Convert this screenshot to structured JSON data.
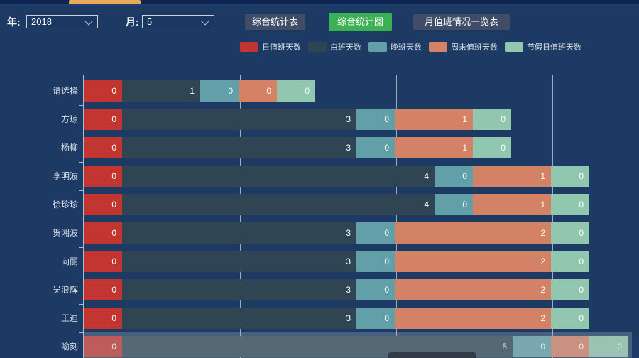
{
  "colors": {
    "background": "#1c3a64",
    "active_tab_accent": "#e9a85e",
    "active_button_green": "#3cb054",
    "default_button": "#3f4e66",
    "gridline": "#c9d2da"
  },
  "toolbar": {
    "year_label": "年:",
    "year_value": "2018",
    "month_label": "月:",
    "month_value": "5",
    "buttons": [
      {
        "label": "综合统计表",
        "variant": "default"
      },
      {
        "label": "综合统计图",
        "variant": "active"
      },
      {
        "label": "月值班情况一览表",
        "variant": "default"
      }
    ]
  },
  "chart_data": {
    "type": "bar",
    "orientation": "horizontal",
    "stacked": true,
    "legend_position": "top",
    "grid": true,
    "categories": [
      "请选择",
      "方琼",
      "杨柳",
      "李明波",
      "徐珍珍",
      "贺湘波",
      "向丽",
      "吴浪辉",
      "王迪",
      "喻刻"
    ],
    "series": [
      {
        "name": "日值班天数",
        "color": "#c23531",
        "values": [
          0,
          0,
          0,
          0,
          0,
          0,
          0,
          0,
          0,
          0
        ]
      },
      {
        "name": "白班天数",
        "color": "#2f4554",
        "values": [
          1,
          3,
          3,
          4,
          4,
          3,
          3,
          3,
          3,
          5
        ]
      },
      {
        "name": "晚班天数",
        "color": "#61a0a8",
        "values": [
          0,
          0,
          0,
          0,
          0,
          0,
          0,
          0,
          0,
          0
        ]
      },
      {
        "name": "周末值班天数",
        "color": "#d48265",
        "values": [
          0,
          1,
          1,
          1,
          1,
          2,
          2,
          2,
          2,
          0
        ]
      },
      {
        "name": "节假日值班天数",
        "color": "#91c7ae",
        "values": [
          0,
          0,
          0,
          0,
          0,
          0,
          0,
          0,
          0,
          0
        ]
      }
    ],
    "x_gridline_values": [
      2,
      4,
      6
    ],
    "xlim": [
      0,
      7
    ],
    "highlighted_category": "喻刻"
  }
}
